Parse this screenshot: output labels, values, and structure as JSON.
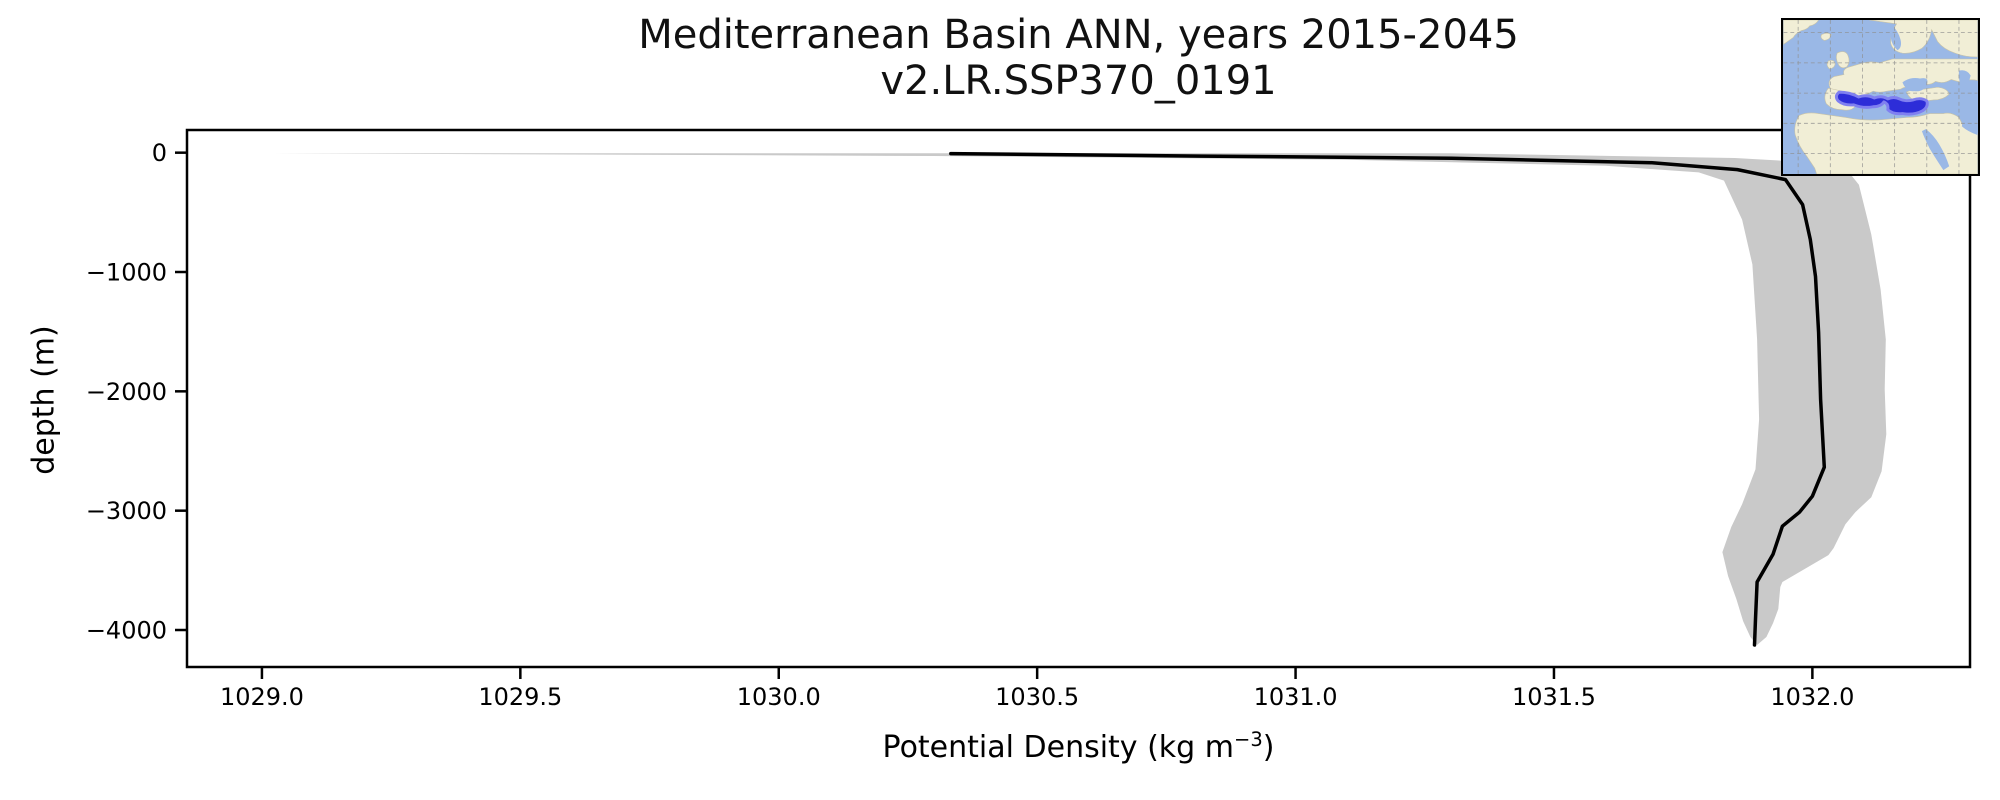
{
  "chart_data": {
    "type": "line",
    "title": "Mediterranean Basin ANN, years 2015-2045",
    "subtitle": "v2.LR.SSP370_0191",
    "xlabel": "Potential Density (kg m−3)",
    "xlabel_parts": {
      "main": "Potential Density (kg m",
      "sup": "−3",
      "end": ")"
    },
    "ylabel": "depth (m)",
    "xlim": [
      1028.855,
      1032.305
    ],
    "ylim": [
      -4310,
      190
    ],
    "xticks": [
      1029.0,
      1029.5,
      1030.0,
      1030.5,
      1031.0,
      1031.5,
      1032.0
    ],
    "xtick_labels": [
      "1029.0",
      "1029.5",
      "1030.0",
      "1030.5",
      "1031.0",
      "1031.5",
      "1032.0"
    ],
    "yticks": [
      0,
      -1000,
      -2000,
      -3000,
      -4000
    ],
    "ytick_labels": [
      "0",
      "−1000",
      "−2000",
      "−3000",
      "−4000"
    ],
    "grid": false,
    "legend_position": "none",
    "line_color": "#000000",
    "band_color": "#c9c9c9",
    "series": [
      {
        "name": "mean potential density profile",
        "points": [
          [
            1030.333,
            -8
          ],
          [
            1030.818,
            -29
          ],
          [
            1031.302,
            -46
          ],
          [
            1031.69,
            -84
          ],
          [
            1031.855,
            -142
          ],
          [
            1031.948,
            -226
          ],
          [
            1031.981,
            -435
          ],
          [
            1031.996,
            -728
          ],
          [
            1032.006,
            -1038
          ],
          [
            1032.012,
            -1506
          ],
          [
            1032.016,
            -2067
          ],
          [
            1032.023,
            -2636
          ],
          [
            1032.0,
            -2879
          ],
          [
            1031.975,
            -3013
          ],
          [
            1031.942,
            -3130
          ],
          [
            1031.924,
            -3364
          ],
          [
            1031.893,
            -3598
          ],
          [
            1031.89,
            -3908
          ],
          [
            1031.888,
            -4126
          ]
        ]
      },
      {
        "name": "std envelope",
        "polygon": [
          [
            1029.021,
            -5
          ],
          [
            1030.3,
            -28
          ],
          [
            1031.1,
            -60
          ],
          [
            1031.6,
            -110
          ],
          [
            1031.78,
            -165
          ],
          [
            1031.829,
            -234
          ],
          [
            1031.864,
            -561
          ],
          [
            1031.884,
            -937
          ],
          [
            1031.893,
            -1565
          ],
          [
            1031.897,
            -2234
          ],
          [
            1031.89,
            -2653
          ],
          [
            1031.864,
            -2946
          ],
          [
            1031.843,
            -3138
          ],
          [
            1031.826,
            -3347
          ],
          [
            1031.837,
            -3548
          ],
          [
            1031.853,
            -3741
          ],
          [
            1031.866,
            -3925
          ],
          [
            1031.88,
            -4059
          ],
          [
            1031.893,
            -4126
          ],
          [
            1031.911,
            -4059
          ],
          [
            1031.924,
            -3941
          ],
          [
            1031.934,
            -3824
          ],
          [
            1031.938,
            -3640
          ],
          [
            1031.942,
            -3598
          ],
          [
            1032.031,
            -3372
          ],
          [
            1032.041,
            -3314
          ],
          [
            1032.064,
            -3113
          ],
          [
            1032.083,
            -3013
          ],
          [
            1032.114,
            -2887
          ],
          [
            1032.134,
            -2670
          ],
          [
            1032.143,
            -2360
          ],
          [
            1032.14,
            -1983
          ],
          [
            1032.142,
            -1565
          ],
          [
            1032.132,
            -1146
          ],
          [
            1032.114,
            -686
          ],
          [
            1032.09,
            -268
          ],
          [
            1032.07,
            -160
          ],
          [
            1032.01,
            -84
          ],
          [
            1031.85,
            -45
          ],
          [
            1031.3,
            -5
          ]
        ]
      }
    ]
  },
  "inset_map": {
    "ocean_color": "#9ab8e6",
    "land_color": "#f1eed6",
    "grid_color": "#8f8f8f",
    "highlight_color": "#2d2dd8",
    "highlight_halo_color": "#8080f0"
  }
}
